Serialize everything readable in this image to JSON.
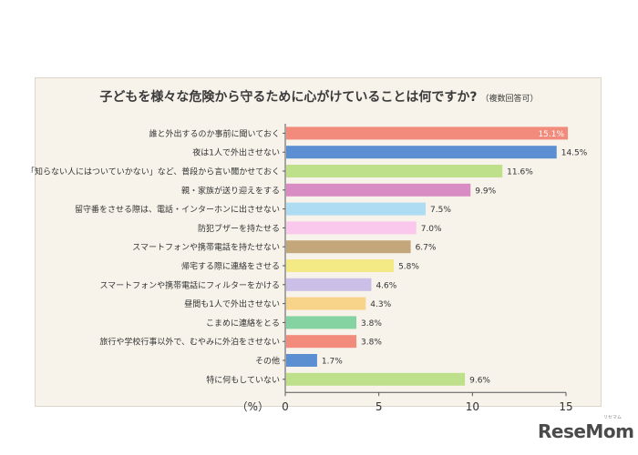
{
  "chart_data": {
    "type": "bar",
    "orientation": "horizontal",
    "title": "子どもを様々な危険から守るために心がけていることは何ですか?",
    "title_note": "（複数回答可）",
    "unit_label": "（%）",
    "xlim": [
      0,
      15
    ],
    "x_ticks": [
      "0",
      "5",
      "10",
      "15"
    ],
    "grid": false,
    "categories": [
      "誰と外出するのか事前に聞いておく",
      "夜は1人で外出させない",
      "「知らない人にはついていかない」など、普段から言い聞かせておく",
      "親・家族が送り迎えをする",
      "留守番をさせる際は、電話・インターホンに出させない",
      "防犯ブザーを持たせる",
      "スマートフォンや携帯電話を持たせない",
      "帰宅する際に連絡をさせる",
      "スマートフォンや携帯電話にフィルターをかける",
      "昼間も1人で外出させない",
      "こまめに連絡をとる",
      "旅行や学校行事以外で、むやみに外泊をさせない",
      "その他",
      "特に何もしていない"
    ],
    "values": [
      15.1,
      14.5,
      11.6,
      9.9,
      7.5,
      7.0,
      6.7,
      5.8,
      4.6,
      4.3,
      3.8,
      3.8,
      1.7,
      9.6
    ],
    "value_labels": [
      "15.1%",
      "14.5%",
      "11.6%",
      "9.9%",
      "7.5%",
      "7.0%",
      "6.7%",
      "5.8%",
      "4.6%",
      "4.3%",
      "3.8%",
      "3.8%",
      "1.7%",
      "9.6%"
    ],
    "colors": [
      "#f28b7c",
      "#5b8fd2",
      "#bfe08a",
      "#d98bc4",
      "#aedcf2",
      "#f9c8ec",
      "#c3a77a",
      "#f3ea86",
      "#cbbfe8",
      "#f8d48a",
      "#86d3a2",
      "#f28b7c",
      "#5b8fd2",
      "#bfe08a"
    ]
  },
  "branding": {
    "logo_text": "ReseMom",
    "logo_ruby": "リセマム"
  }
}
